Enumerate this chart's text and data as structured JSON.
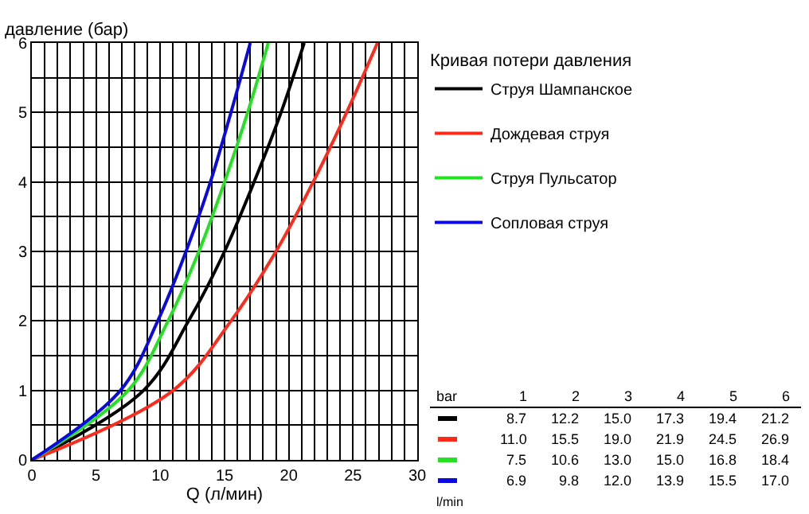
{
  "chart_data": {
    "type": "line",
    "ylabel": "давление (бар)",
    "xlabel": "Q (л/мин)",
    "legend_title": "Кривая потери давления",
    "xlim": [
      0,
      30
    ],
    "xticks": [
      0,
      5,
      10,
      15,
      20,
      25,
      30
    ],
    "ylim": [
      0,
      6
    ],
    "yticks": [
      0,
      1,
      2,
      3,
      4,
      5,
      6
    ],
    "grid": true,
    "legend": "top right",
    "marker": "none",
    "line_style": "solid",
    "annotations": [
      "bar",
      "1",
      "2",
      "3",
      "4",
      "5",
      "6",
      "8.7",
      "12.2",
      "15.0",
      "17.3",
      "19.4",
      "21.2",
      "11.0",
      "15.5",
      "19.0",
      "21.9",
      "24.5",
      "26.9",
      "7.5",
      "10.6",
      "13.0",
      "15.0",
      "16.8",
      "18.4",
      "6.9",
      "9.8",
      "12.0",
      "13.9",
      "15.5",
      "17.0",
      "l/min"
    ],
    "series": [
      {
        "name": "Струя Шампанское",
        "color": "#000000",
        "x": [
          0,
          8.7,
          12.2,
          15.0,
          17.3,
          19.4,
          21.2
        ],
        "values": [
          0,
          1,
          2,
          3,
          4,
          5,
          6
        ]
      },
      {
        "name": "Дождевая струя",
        "color": "#ff2a1a",
        "x": [
          0,
          11.0,
          15.5,
          19.0,
          21.9,
          24.5,
          26.9
        ],
        "values": [
          0,
          1,
          2,
          3,
          4,
          5,
          6
        ]
      },
      {
        "name": "Струя Пульсатор",
        "color": "#22e222",
        "x": [
          0,
          7.5,
          10.6,
          13.0,
          15.0,
          16.8,
          18.4
        ],
        "values": [
          0,
          1,
          2,
          3,
          4,
          5,
          6
        ]
      },
      {
        "name": "Сопловая струя",
        "color": "#0a0ae0",
        "x": [
          0,
          6.9,
          9.8,
          12.0,
          13.9,
          15.5,
          17.0
        ],
        "values": [
          0,
          1,
          2,
          3,
          4,
          5,
          6
        ]
      }
    ]
  }
}
